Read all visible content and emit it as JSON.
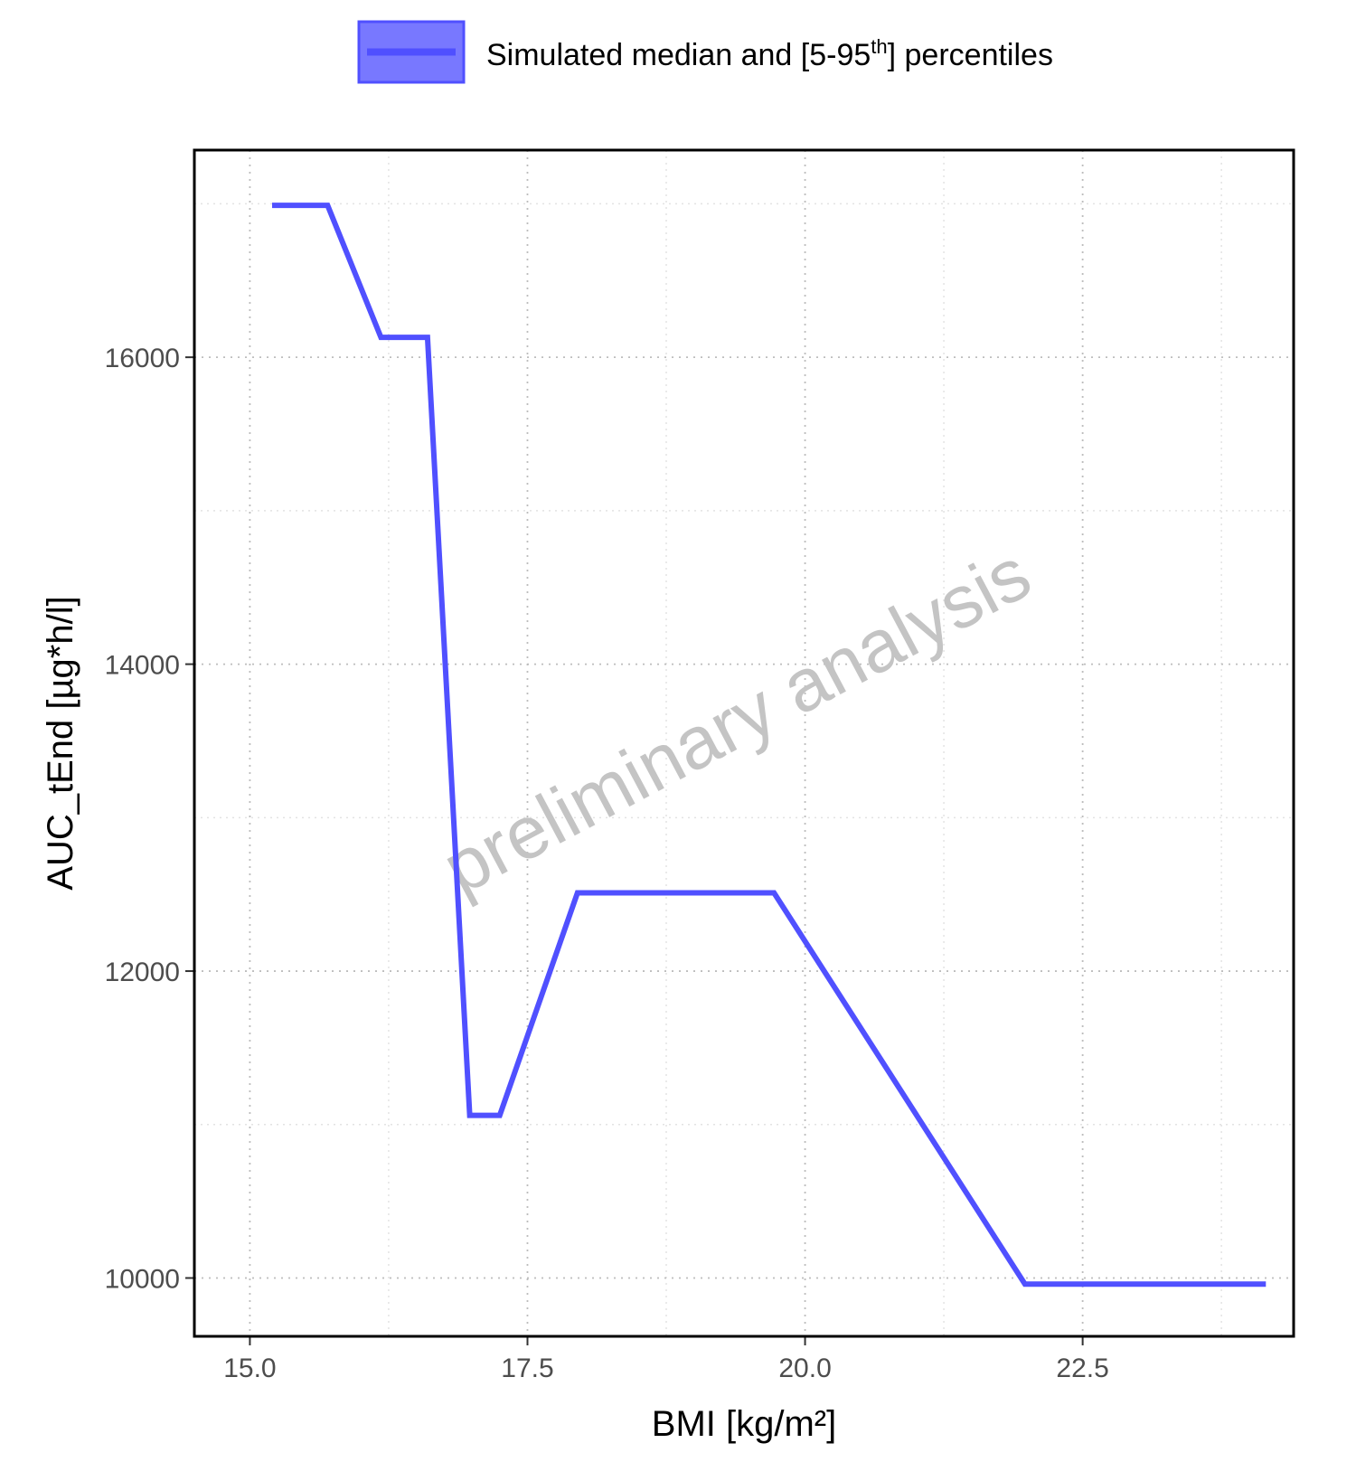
{
  "chart_data": {
    "type": "line",
    "title": "",
    "xlabel": "BMI [kg/m²]",
    "ylabel": "AUC_tEnd [µg*h/l]",
    "xlim": [
      14.5,
      24.4
    ],
    "ylim": [
      9620,
      17350
    ],
    "xticks": [
      15.0,
      17.5,
      20.0,
      22.5
    ],
    "xtick_labels": [
      "15.0",
      "17.5",
      "20.0",
      "22.5"
    ],
    "yticks": [
      10000,
      12000,
      14000,
      16000
    ],
    "ytick_labels": [
      "10000",
      "12000",
      "14000",
      "16000"
    ],
    "grid": true,
    "legend_position": "top",
    "legend": {
      "label_prefix": "Simulated median and [5-95",
      "label_sup": "th",
      "label_suffix": "] percentiles"
    },
    "watermark": "preliminary analysis",
    "series": [
      {
        "name": "Simulated median and [5-95th] percentiles",
        "color": "#5050FF",
        "x": [
          15.2,
          15.7,
          16.18,
          16.6,
          16.98,
          17.25,
          17.95,
          19.72,
          21.98,
          24.15
        ],
        "y": [
          16990,
          16990,
          16130,
          16130,
          11060,
          11060,
          12510,
          12510,
          9960,
          9960
        ]
      }
    ]
  }
}
